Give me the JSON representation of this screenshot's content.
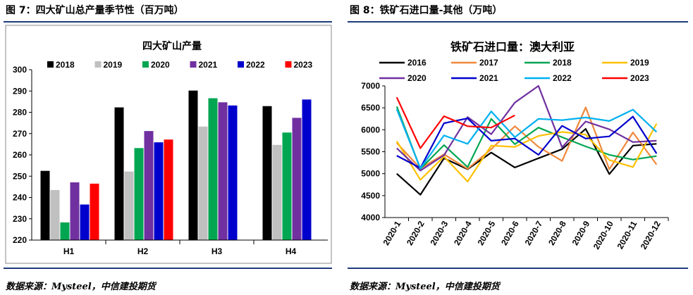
{
  "left_panel": {
    "figure_title": "图 7：四大矿山总产量季节性（百万吨）",
    "source": "数据来源：Mysteel，中信建投期货"
  },
  "right_panel": {
    "figure_title": "图 8：铁矿石进口量-其他（万吨）",
    "source": "数据来源：Mysteel，中信建投期货"
  },
  "chart_data": [
    {
      "type": "bar",
      "title": "四大矿山产量",
      "categories": [
        "H1",
        "H2",
        "H3",
        "H4"
      ],
      "ylim": [
        220,
        300
      ],
      "yticks": [
        220,
        230,
        240,
        250,
        260,
        270,
        280,
        290,
        300
      ],
      "legend_position": "top",
      "grid": false,
      "series": [
        {
          "name": "2018",
          "color": "#000000",
          "values": [
            252.5,
            282.3,
            290.2,
            282.9
          ]
        },
        {
          "name": "2019",
          "color": "#c0c0c0",
          "values": [
            243.5,
            252.2,
            273.3,
            264.7
          ]
        },
        {
          "name": "2020",
          "color": "#00a651",
          "values": [
            228.3,
            263.2,
            286.6,
            270.5
          ]
        },
        {
          "name": "2021",
          "color": "#7030a0",
          "values": [
            247.1,
            271.2,
            284.7,
            277.4
          ]
        },
        {
          "name": "2022",
          "color": "#0000cc",
          "values": [
            236.7,
            265.9,
            283.2,
            286.0
          ]
        },
        {
          "name": "2023",
          "color": "#ff0000",
          "values": [
            246.5,
            267.2,
            null,
            null
          ]
        }
      ]
    },
    {
      "type": "line",
      "title": "铁矿石进口量：澳大利亚",
      "categories": [
        "2020-1",
        "2020-2",
        "2020-3",
        "2020-4",
        "2020-5",
        "2020-6",
        "2020-7",
        "2020-8",
        "2020-9",
        "2020-10",
        "2020-11",
        "2020-12"
      ],
      "ylim": [
        4000,
        7000
      ],
      "yticks": [
        4000,
        4500,
        5000,
        5500,
        6000,
        6500,
        7000
      ],
      "legend_position": "top",
      "grid": false,
      "series": [
        {
          "name": "2016",
          "color": "#000000",
          "values": [
            5000,
            4520,
            5350,
            5100,
            5480,
            5140,
            5350,
            5560,
            6020,
            4990,
            5640,
            5680
          ]
        },
        {
          "name": "2017",
          "color": "#f0883c",
          "values": [
            5700,
            5120,
            5440,
            5110,
            5560,
            6080,
            5610,
            5290,
            6510,
            5100,
            5940,
            5210
          ]
        },
        {
          "name": "2018",
          "color": "#00a651",
          "values": [
            6530,
            5110,
            5650,
            5150,
            6250,
            5670,
            6050,
            5830,
            5620,
            5430,
            5320,
            5400
          ]
        },
        {
          "name": "2019",
          "color": "#ffc000",
          "values": [
            5740,
            4860,
            5390,
            4820,
            5640,
            5610,
            5860,
            5950,
            5890,
            5310,
            5150,
            6140
          ]
        },
        {
          "name": "2020",
          "color": "#7030a0",
          "values": [
            5580,
            5070,
            5420,
            6290,
            5900,
            6620,
            7000,
            5600,
            6190,
            6010,
            5720,
            5750
          ]
        },
        {
          "name": "2021",
          "color": "#0000cc",
          "values": [
            5410,
            5130,
            6150,
            6260,
            5750,
            5800,
            5430,
            6090,
            5800,
            5850,
            6300,
            5460
          ]
        },
        {
          "name": "2022",
          "color": "#00b0f0",
          "values": [
            6470,
            5120,
            5870,
            5680,
            6420,
            5830,
            6250,
            6220,
            6280,
            6200,
            6460,
            5950
          ]
        },
        {
          "name": "2023",
          "color": "#ff0000",
          "values": [
            6740,
            5580,
            6310,
            6080,
            6050,
            6330,
            null,
            null,
            null,
            null,
            null,
            null
          ]
        }
      ]
    }
  ]
}
